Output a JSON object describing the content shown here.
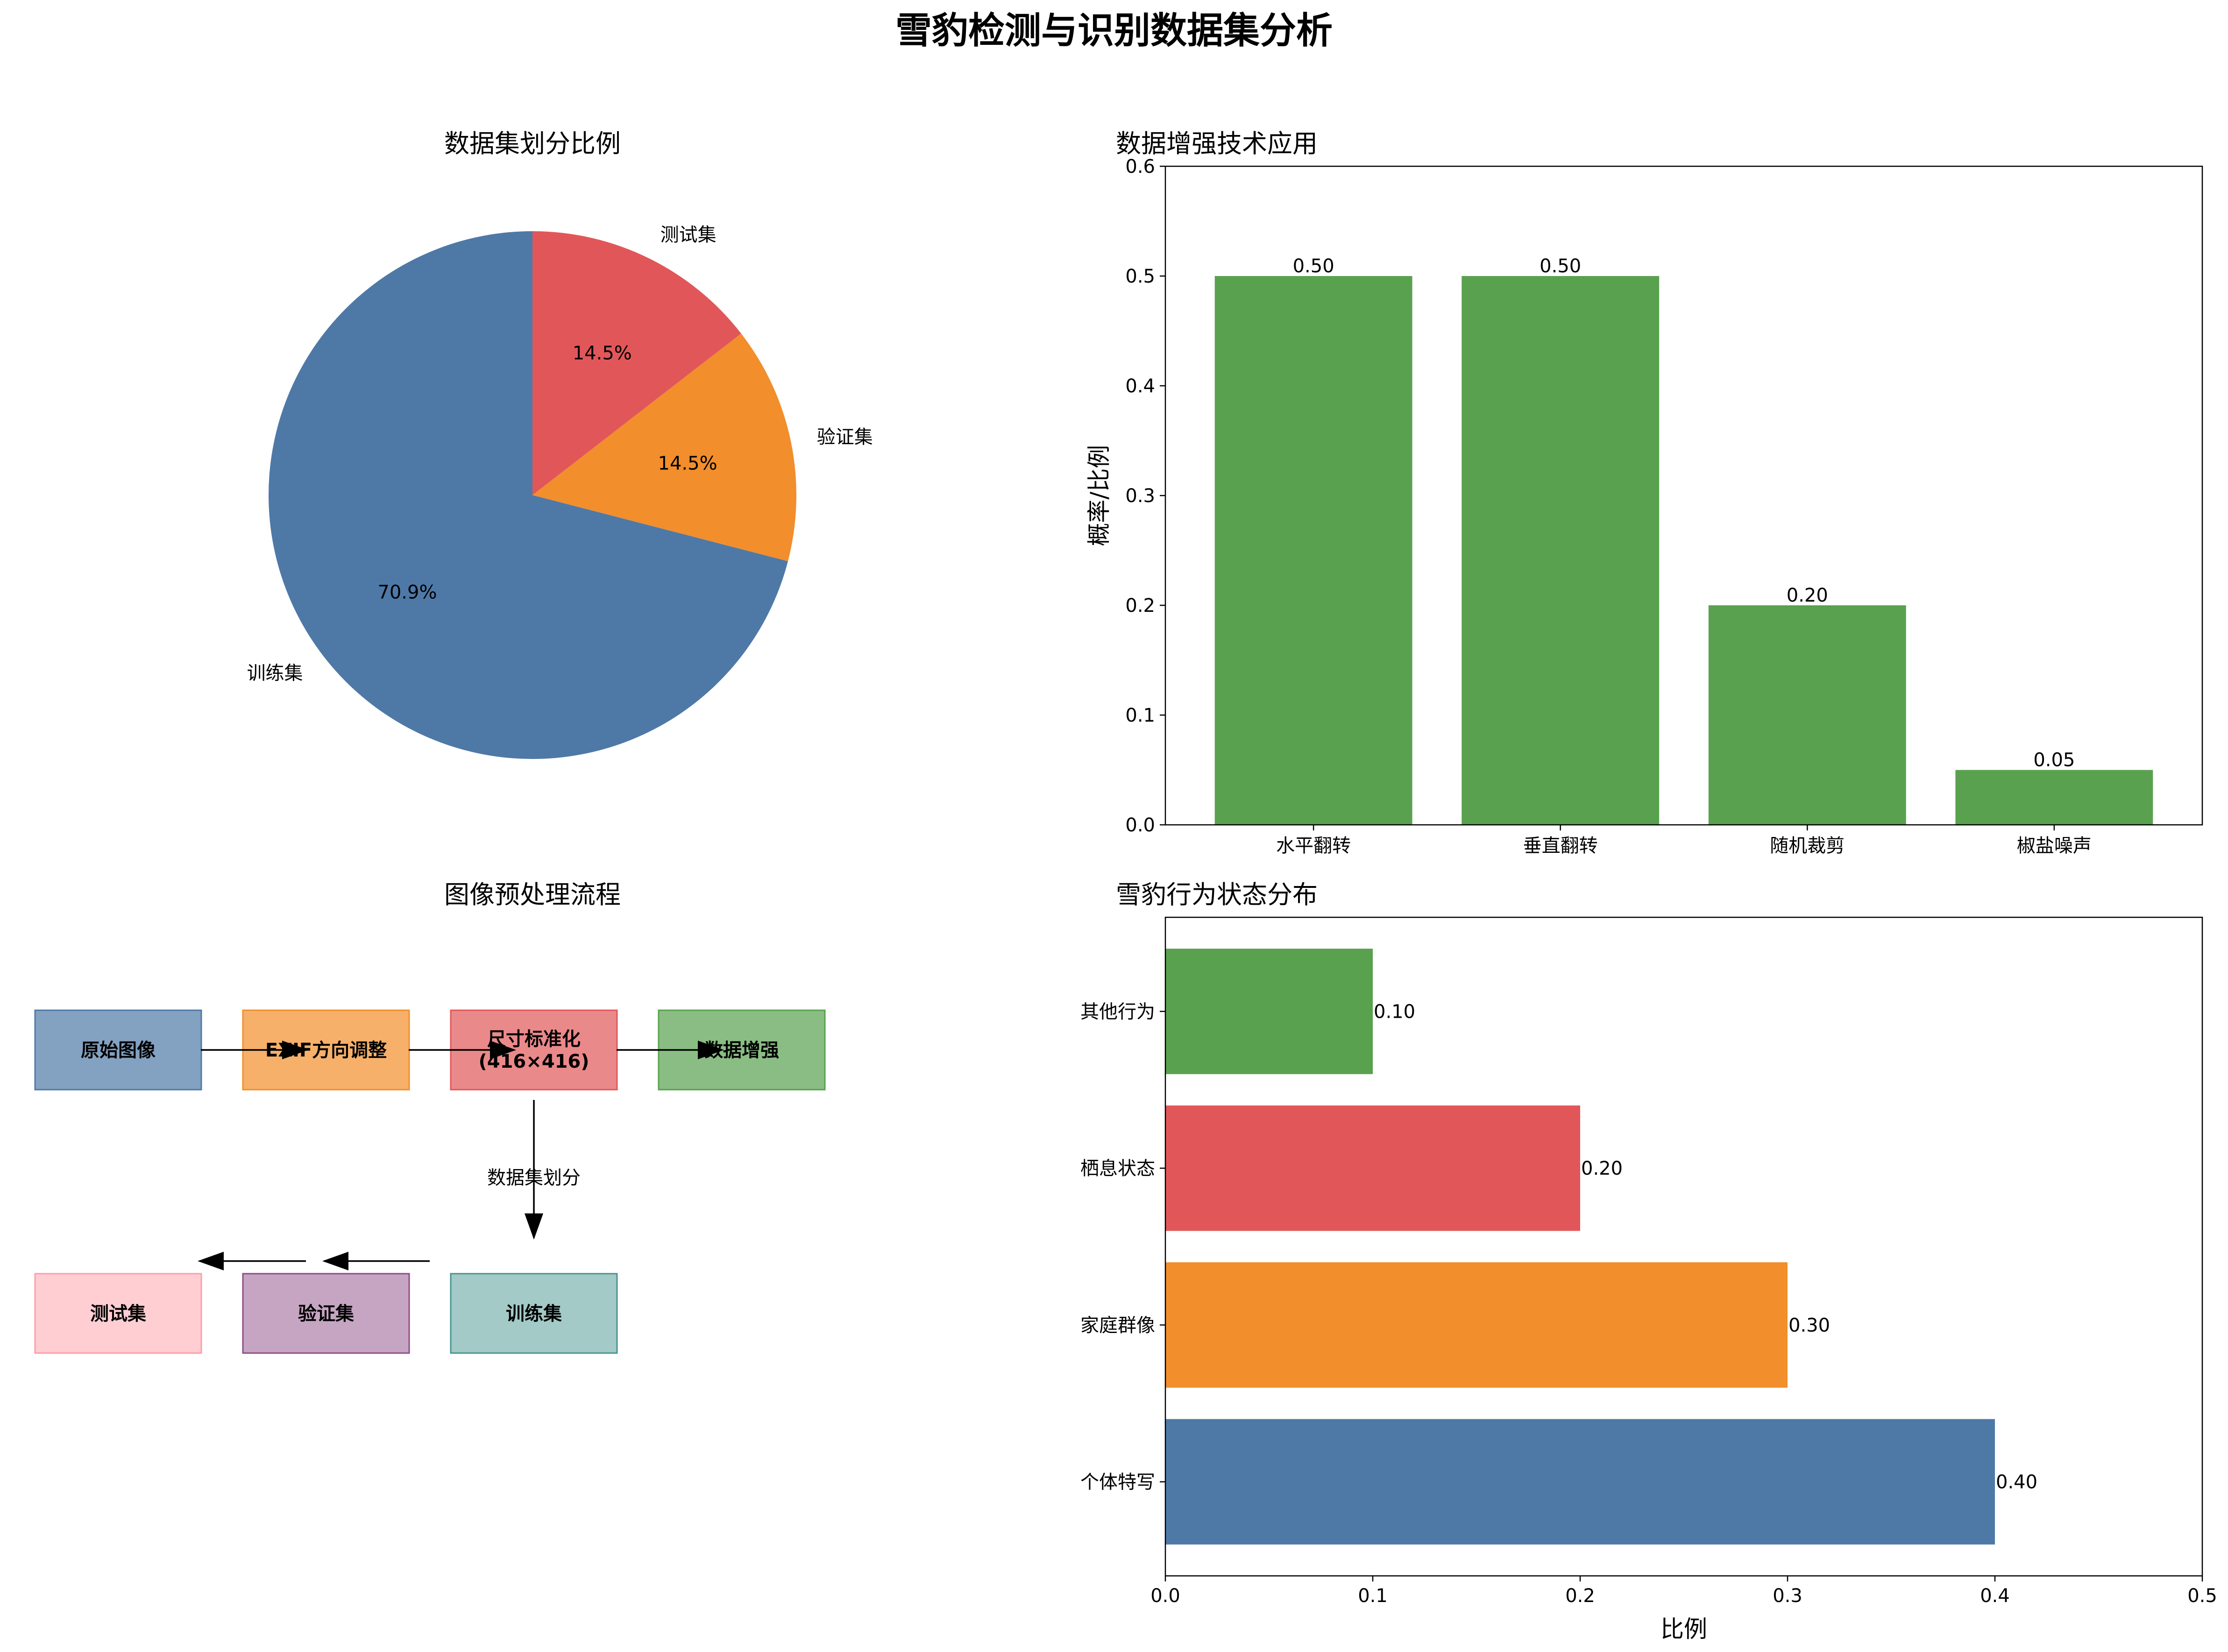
{
  "figure": {
    "title": "雪豹检测与识别数据集分析"
  },
  "chart_data": [
    {
      "type": "pie",
      "title": "数据集划分比例",
      "labels": [
        "训练集",
        "验证集",
        "测试集"
      ],
      "values": [
        70.9,
        14.5,
        14.5
      ],
      "autopct": [
        "70.9%",
        "14.5%",
        "14.5%"
      ],
      "colors": [
        "#4e79a7",
        "#f28e2b",
        "#e15759"
      ],
      "start_angle_deg": 90
    },
    {
      "type": "bar",
      "title": "数据增强技术应用",
      "categories": [
        "水平翻转",
        "垂直翻转",
        "随机裁剪",
        "椒盐噪声"
      ],
      "values": [
        0.5,
        0.5,
        0.2,
        0.05
      ],
      "value_labels": [
        "0.50",
        "0.50",
        "0.20",
        "0.05"
      ],
      "xlabel": "",
      "ylabel": "概率/比例",
      "ylim": [
        0,
        0.6
      ],
      "yticks": [
        "0.0",
        "0.1",
        "0.2",
        "0.3",
        "0.4",
        "0.5",
        "0.6"
      ],
      "color": "#59a14f",
      "grid": false
    },
    {
      "type": "bar",
      "orientation": "horizontal",
      "title": "雪豹行为状态分布",
      "categories": [
        "个体特写",
        "家庭群像",
        "栖息状态",
        "其他行为"
      ],
      "values": [
        0.4,
        0.3,
        0.2,
        0.1
      ],
      "value_labels": [
        "0.40",
        "0.30",
        "0.20",
        "0.10"
      ],
      "colors": [
        "#4e79a7",
        "#f28e2b",
        "#e15759",
        "#59a14f"
      ],
      "xlabel": "比例",
      "ylabel": "",
      "xlim": [
        0,
        0.5
      ],
      "xticks": [
        "0.0",
        "0.1",
        "0.2",
        "0.3",
        "0.4",
        "0.5"
      ],
      "grid": false
    }
  ],
  "flowchart": {
    "title": "图像预处理流程",
    "top_row": [
      {
        "label": "原始图像",
        "color": "#4e79a7"
      },
      {
        "label": "EXIF方向调整",
        "color": "#f28e2b"
      },
      {
        "label": "尺寸标准化\n(416×416)",
        "color": "#e15759"
      },
      {
        "label": "数据增强",
        "color": "#59a14f"
      }
    ],
    "bottom_row": [
      {
        "label": "测试集",
        "color": "#ff9da7"
      },
      {
        "label": "验证集",
        "color": "#8e4c87"
      },
      {
        "label": "训练集",
        "color": "#48958f"
      }
    ],
    "split_label": "数据集划分"
  }
}
